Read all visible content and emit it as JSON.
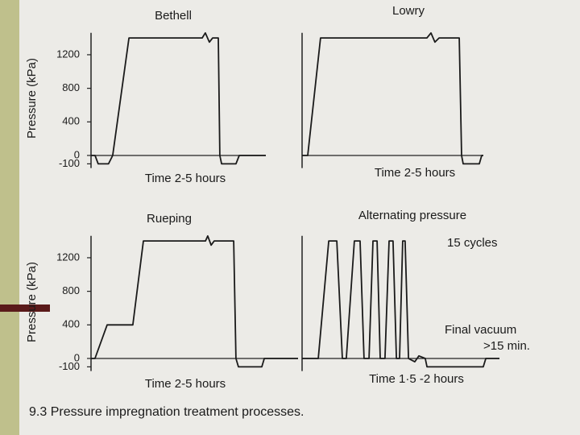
{
  "caption": "9.3 Pressure impregnation treatment processes.",
  "chart_data": [
    {
      "type": "line",
      "title": "Bethell",
      "xlabel": "Time 2-5 hours",
      "ylabel": "Pressure (kPa)",
      "color": "#1a1a1a",
      "x": [
        0,
        2.3,
        4.1,
        10,
        12.4,
        21.7,
        63.6,
        65.4,
        67.7,
        69.6,
        72.8,
        73.7,
        74.7,
        82.9,
        84.8,
        100
      ],
      "values": [
        0,
        0,
        -100,
        -100,
        0,
        1400,
        1400,
        1460,
        1350,
        1400,
        1400,
        0,
        -100,
        -100,
        0,
        0
      ],
      "xlim": [
        0,
        100
      ],
      "ylim": [
        -150,
        1500
      ],
      "yticks": [
        -100,
        0,
        400,
        800,
        1200
      ]
    },
    {
      "type": "line",
      "title": "Lowry",
      "xlabel": "Time 2-5 hours",
      "color": "#1a1a1a",
      "x": [
        0,
        3.1,
        10.2,
        68.9,
        71.1,
        73.3,
        75.6,
        86.7,
        88,
        88.9,
        97.8,
        99.1,
        100
      ],
      "values": [
        0,
        0,
        1400,
        1400,
        1460,
        1350,
        1400,
        1400,
        0,
        -100,
        -100,
        0,
        0
      ],
      "xlim": [
        0,
        100
      ],
      "ylim": [
        -150,
        1500
      ]
    },
    {
      "type": "line",
      "title": "Rueping",
      "xlabel": "Time 2-5 hours",
      "ylabel": "Pressure (kPa)",
      "color": "#1a1a1a",
      "x": [
        0,
        1.9,
        7.8,
        20.2,
        25.3,
        55.3,
        56.4,
        58,
        59.5,
        68.9,
        70,
        71.2,
        82.5,
        83.7,
        100
      ],
      "values": [
        0,
        0,
        400,
        400,
        1400,
        1400,
        1460,
        1350,
        1400,
        1400,
        0,
        -100,
        -100,
        0,
        0
      ],
      "xlim": [
        0,
        100
      ],
      "ylim": [
        -150,
        1500
      ],
      "yticks": [
        -100,
        0,
        400,
        800,
        1200
      ]
    },
    {
      "type": "line",
      "title": "Alternating pressure",
      "xlabel": "Time 1·5 -2 hours",
      "color": "#1a1a1a",
      "x": [
        0,
        8.2,
        13.5,
        17.6,
        20.4,
        22.4,
        26.5,
        29.4,
        31.4,
        33.9,
        35.9,
        38,
        39.6,
        42,
        44.1,
        46.1,
        47.8,
        49.4,
        51,
        52.2,
        53.9,
        57.1,
        59.2,
        62.4,
        63.3,
        91.8,
        93.1,
        100
      ],
      "values": [
        0,
        0,
        1400,
        1400,
        0,
        0,
        1400,
        1400,
        0,
        0,
        1400,
        1400,
        0,
        0,
        1400,
        1400,
        0,
        0,
        1400,
        1400,
        0,
        -40,
        30,
        0,
        -100,
        -100,
        0,
        0
      ],
      "xlim": [
        0,
        100
      ],
      "ylim": [
        -150,
        1500
      ],
      "annotations": [
        "15 cycles",
        "Final vacuum",
        ">15 min."
      ]
    }
  ]
}
